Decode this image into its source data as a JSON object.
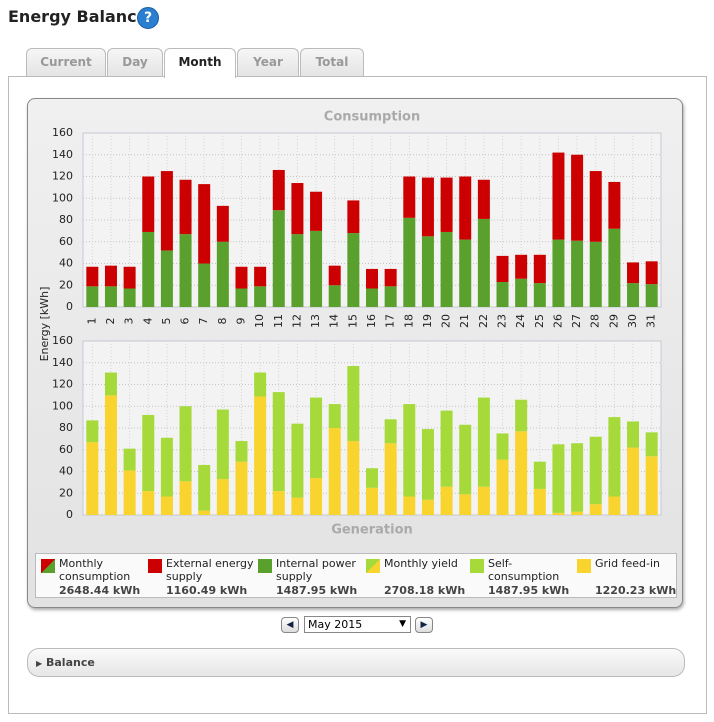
{
  "header": {
    "title": "Energy Balance",
    "help": "?"
  },
  "tabs": [
    "Current",
    "Day",
    "Month",
    "Year",
    "Total"
  ],
  "chart_data": [
    {
      "type": "bar",
      "stacked": true,
      "title": "Consumption",
      "y_label": "Energy [kWh]",
      "categories": [
        "1",
        "2",
        "3",
        "4",
        "5",
        "6",
        "7",
        "8",
        "9",
        "10",
        "11",
        "12",
        "13",
        "14",
        "15",
        "16",
        "17",
        "18",
        "19",
        "20",
        "21",
        "22",
        "23",
        "24",
        "25",
        "26",
        "27",
        "28",
        "29",
        "30",
        "31"
      ],
      "series": [
        {
          "name": "Internal power supply",
          "color": "#5aa02c",
          "values": [
            19,
            19,
            17,
            69,
            52,
            67,
            40,
            60,
            17,
            19,
            89,
            67,
            70,
            20,
            68,
            17,
            19,
            82,
            65,
            69,
            62,
            81,
            23,
            26,
            22,
            62,
            61,
            60,
            72,
            22,
            21
          ]
        },
        {
          "name": "External energy supply",
          "color": "#cc0000",
          "values": [
            18,
            19,
            20,
            51,
            73,
            50,
            73,
            33,
            20,
            18,
            37,
            47,
            36,
            18,
            30,
            18,
            16,
            38,
            54,
            50,
            58,
            36,
            24,
            22,
            26,
            80,
            79,
            65,
            43,
            19,
            21
          ]
        }
      ],
      "ylim": [
        0,
        160
      ],
      "yticks": [
        0,
        20,
        40,
        60,
        80,
        100,
        120,
        140,
        160
      ],
      "grid": true
    },
    {
      "type": "bar",
      "stacked": true,
      "title": "Generation",
      "series": [
        {
          "name": "Grid feed-in",
          "color": "#f9d32e",
          "values": [
            67,
            110,
            41,
            22,
            17,
            31,
            4,
            33,
            49,
            109,
            22,
            16,
            34,
            80,
            68,
            25,
            66,
            17,
            14,
            26,
            19,
            26,
            51,
            77,
            24,
            2,
            3,
            10,
            17,
            62,
            54
          ]
        },
        {
          "name": "Self-consumption",
          "color": "#a6d93a",
          "values": [
            20,
            21,
            20,
            70,
            54,
            69,
            42,
            64,
            19,
            22,
            91,
            68,
            74,
            22,
            69,
            18,
            22,
            85,
            65,
            70,
            64,
            82,
            24,
            29,
            25,
            63,
            63,
            62,
            73,
            24,
            22
          ]
        }
      ],
      "ylim": [
        0,
        160
      ],
      "yticks": [
        0,
        20,
        40,
        60,
        80,
        100,
        120,
        140,
        160
      ],
      "grid": true
    }
  ],
  "legend": {
    "monthly_consumption": "Monthly consumption",
    "monthly_yield": "Monthly yield",
    "totals": [
      "2648.44 kWh",
      "1160.49 kWh",
      "1487.95 kWh",
      "2708.18 kWh",
      "1487.95 kWh",
      "1220.23 kWh"
    ]
  },
  "navigation": {
    "period": "May 2015"
  },
  "balance": {
    "title": "Balance"
  }
}
